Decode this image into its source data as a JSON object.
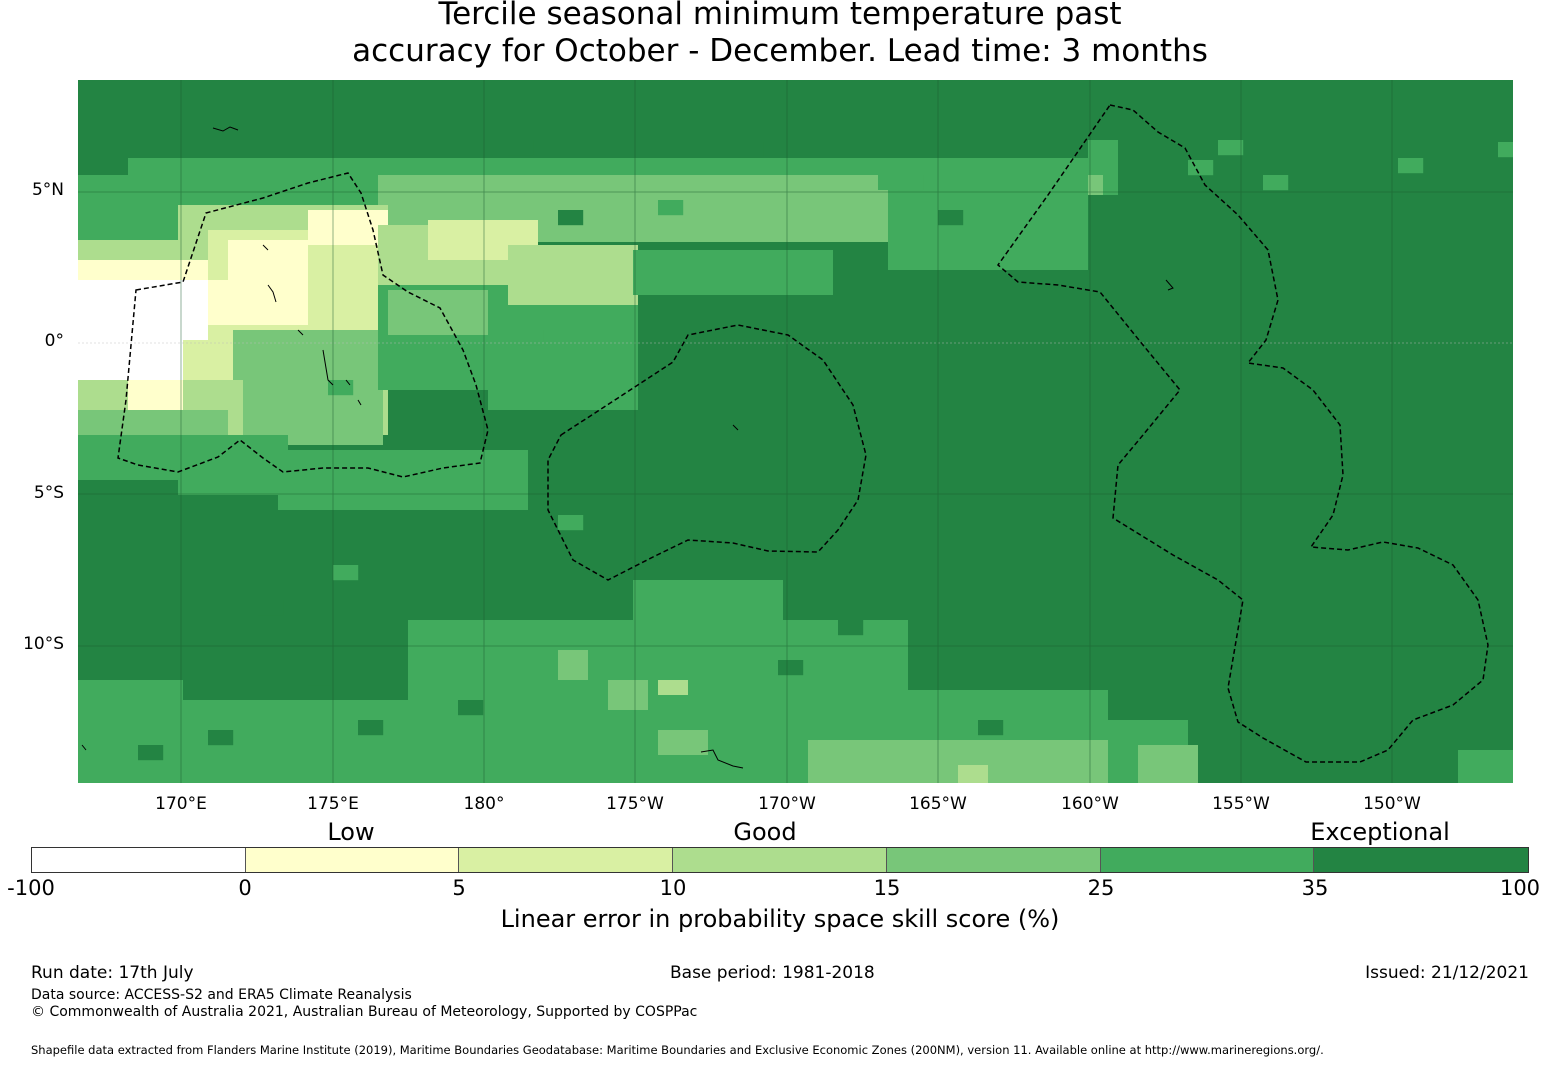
{
  "title_line1": "Tercile seasonal minimum temperature past",
  "title_line2": "accuracy for October - December. Lead time: 3 months",
  "map": {
    "lat_labels": [
      "5°N",
      "0°",
      "5°S",
      "10°S"
    ],
    "lon_labels": [
      "170°E",
      "175°E",
      "180°",
      "175°W",
      "170°W",
      "165°W",
      "160°W",
      "155°W",
      "150°W"
    ],
    "colors": {
      "neg": "#ffffff",
      "c0_5": "#ffffcc",
      "c5_10": "#d9f0a3",
      "c10_15": "#addd8e",
      "c15_25": "#78c679",
      "c25_35": "#41ab5d",
      "c35_100": "#238443"
    }
  },
  "legend": {
    "categories": [
      "Low",
      "Good",
      "Exceptional"
    ],
    "ticks": [
      "-100",
      "0",
      "5",
      "10",
      "15",
      "25",
      "35",
      "100"
    ],
    "colors": [
      "#ffffff",
      "#ffffcc",
      "#d9f0a3",
      "#addd8e",
      "#78c679",
      "#41ab5d",
      "#238443"
    ],
    "label": "Linear error in probability space skill score (%)"
  },
  "footer": {
    "run_date": "Run date: 17th July",
    "base_period": "Base period: 1981-2018",
    "issued": "Issued: 21/12/2021",
    "data_source": "Data source: ACCESS-S2 and ERA5 Climate Reanalysis",
    "copyright": "© Commonwealth of Australia 2021, Australian Bureau of Meteorology, Supported by COSPPac",
    "shapefile": "Shapefile data extracted from Flanders Marine Institute (2019), Maritime Boundaries Geodatabase: Maritime Boundaries and Exclusive Economic Zones (200NM), version 11. Available online at http://www.marineregions.org/."
  }
}
